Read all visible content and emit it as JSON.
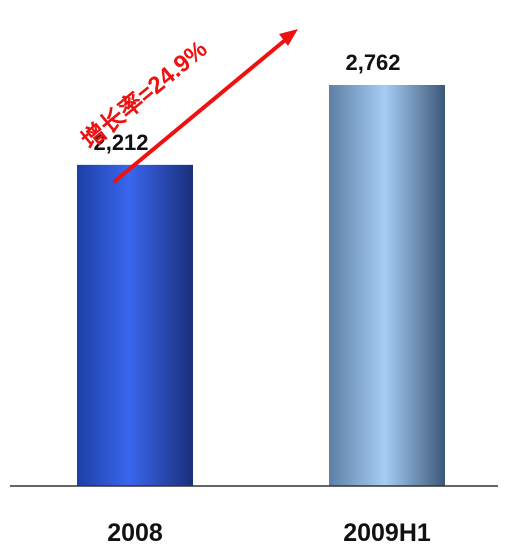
{
  "chart_data": {
    "type": "bar",
    "categories": [
      "2008",
      "2009H1"
    ],
    "values": [
      2212,
      2762
    ],
    "value_labels": [
      "2,212",
      "2,762"
    ],
    "annotation": "增长率=24.9%",
    "colors": {
      "bar_2008": "#2f57d8",
      "bar_2009H1": "#8fb6e6",
      "annotation": "#ee1111",
      "axis": "#333333"
    },
    "grid": false,
    "legend": "none"
  }
}
